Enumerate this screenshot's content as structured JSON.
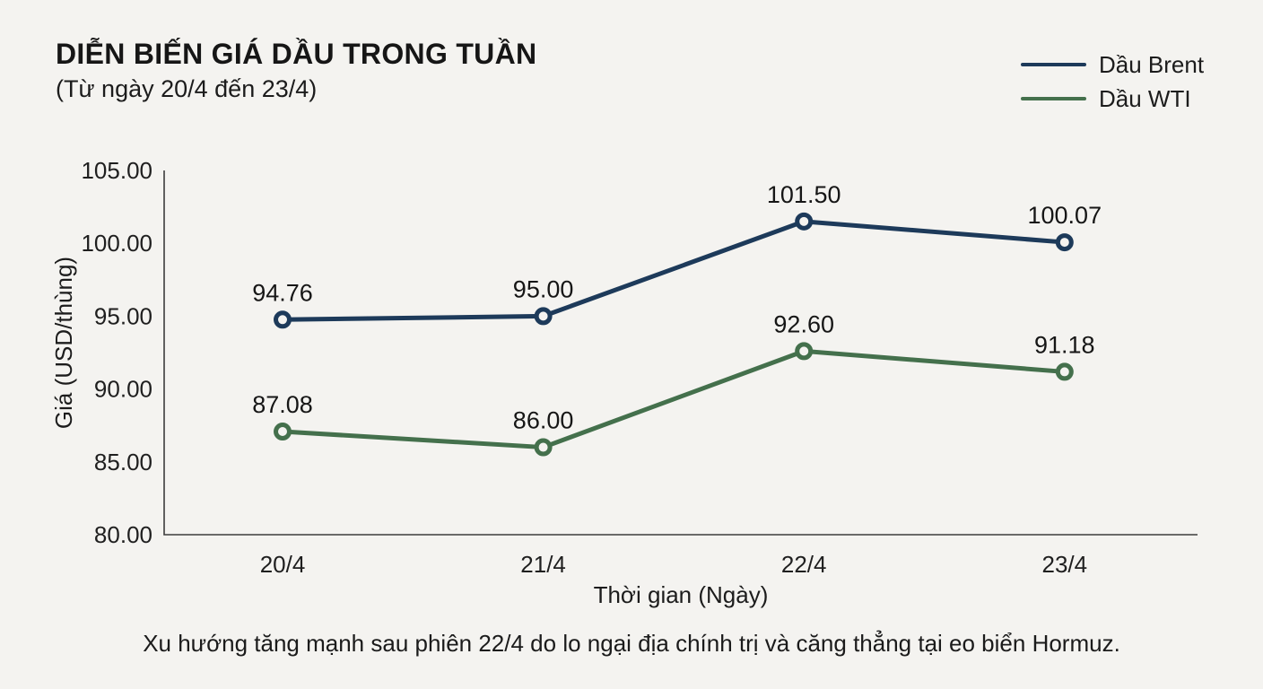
{
  "header": {
    "title": "DIỄN BIẾN GIÁ DẦU TRONG TUẦN",
    "subtitle": "(Từ ngày 20/4 đến 23/4)"
  },
  "caption": "Xu hướng tăng mạnh sau phiên 22/4 do lo ngại địa chính trị và căng thẳng tại eo biển Hormuz.",
  "colors": {
    "background": "#f4f3f0",
    "brent": "#1d3a5a",
    "wti": "#44704c",
    "axis": "#3c3c3c",
    "text": "#1a1a1a"
  },
  "chart_data": {
    "type": "line",
    "title": "DIỄN BIẾN GIÁ DẦU TRONG TUẦN",
    "subtitle": "(Từ ngày 20/4 đến 23/4)",
    "categories": [
      "20/4",
      "21/4",
      "22/4",
      "23/4"
    ],
    "series": [
      {
        "name": "Dầu Brent",
        "color": "#1d3a5a",
        "values": [
          94.76,
          95.0,
          101.5,
          100.07
        ]
      },
      {
        "name": "Dầu WTI",
        "color": "#44704c",
        "values": [
          87.08,
          86.0,
          92.6,
          91.18
        ]
      }
    ],
    "xlabel": "Thời gian (Ngày)",
    "ylabel": "Giá (USD/thùng)",
    "ylim": [
      80,
      105
    ],
    "y_ticks": [
      80,
      85,
      90,
      95,
      100,
      105
    ],
    "y_tick_labels": [
      "80.00",
      "85.00",
      "90.00",
      "95.00",
      "100.00",
      "105.00"
    ],
    "grid": false,
    "legend_position": "top-right",
    "marker": "open-circle",
    "data_labels": true,
    "caption": "Xu hướng tăng mạnh sau phiên 22/4 do lo ngại địa chính trị và căng thẳng tại eo biển Hormuz."
  }
}
